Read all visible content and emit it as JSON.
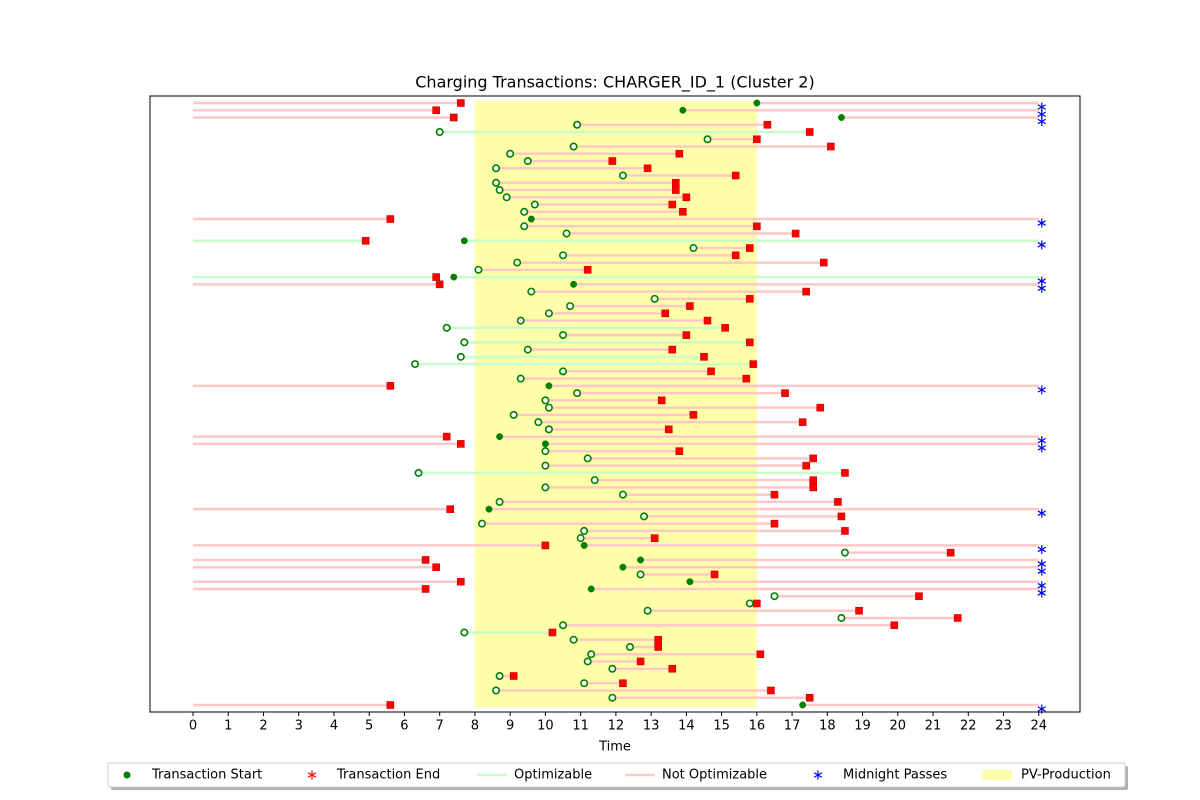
{
  "chart_data": {
    "type": "gantt",
    "title": "Charging Transactions: CHARGER_ID_1 (Cluster 2)",
    "xlabel": "Time",
    "xlim": [
      -1.22,
      25.17
    ],
    "xticks": [
      0,
      1,
      2,
      3,
      4,
      5,
      6,
      7,
      8,
      9,
      10,
      11,
      12,
      13,
      14,
      15,
      16,
      17,
      18,
      19,
      20,
      21,
      22,
      23,
      24
    ],
    "legend": [
      "Transaction Start",
      "Transaction End",
      "Optimizable",
      "Not Optimizable",
      "Midnight Passes",
      "PV-Production"
    ],
    "colors": {
      "start": "#008000",
      "end": "#ff0000",
      "optimizable": "#c8ffc8",
      "not_optimizable": "#ffc8c8",
      "midnight": "#0000ff",
      "pv": "#ffffaa"
    },
    "pv_production": {
      "start": 8,
      "end": 16
    },
    "transactions": [
      {
        "start": 16.0,
        "end": 7.6,
        "optimizable": false,
        "midnight": true
      },
      {
        "start": 13.9,
        "end": 6.9,
        "optimizable": false,
        "midnight": true
      },
      {
        "start": 18.4,
        "end": 7.4,
        "optimizable": false,
        "midnight": true
      },
      {
        "start": 10.9,
        "end": 16.3,
        "optimizable": false,
        "midnight": false
      },
      {
        "start": 7.0,
        "end": 17.5,
        "optimizable": true,
        "midnight": false
      },
      {
        "start": 14.6,
        "end": 16.0,
        "optimizable": false,
        "midnight": false
      },
      {
        "start": 10.8,
        "end": 18.1,
        "optimizable": false,
        "midnight": false
      },
      {
        "start": 9.0,
        "end": 13.8,
        "optimizable": false,
        "midnight": false
      },
      {
        "start": 9.5,
        "end": 11.9,
        "optimizable": false,
        "midnight": false
      },
      {
        "start": 8.6,
        "end": 12.9,
        "optimizable": false,
        "midnight": false
      },
      {
        "start": 12.2,
        "end": 15.4,
        "optimizable": false,
        "midnight": false
      },
      {
        "start": 8.6,
        "end": 13.7,
        "optimizable": false,
        "midnight": false
      },
      {
        "start": 8.7,
        "end": 13.7,
        "optimizable": false,
        "midnight": false
      },
      {
        "start": 8.9,
        "end": 14.0,
        "optimizable": false,
        "midnight": false
      },
      {
        "start": 9.7,
        "end": 13.6,
        "optimizable": false,
        "midnight": false
      },
      {
        "start": 9.4,
        "end": 13.9,
        "optimizable": false,
        "midnight": false
      },
      {
        "start": 9.6,
        "end": 5.6,
        "optimizable": false,
        "midnight": true
      },
      {
        "start": 9.4,
        "end": 16.0,
        "optimizable": false,
        "midnight": false
      },
      {
        "start": 10.6,
        "end": 17.1,
        "optimizable": false,
        "midnight": false
      },
      {
        "start": 7.7,
        "end": 4.9,
        "optimizable": true,
        "midnight": true
      },
      {
        "start": 14.2,
        "end": 15.8,
        "optimizable": false,
        "midnight": false
      },
      {
        "start": 10.5,
        "end": 15.4,
        "optimizable": false,
        "midnight": false
      },
      {
        "start": 9.2,
        "end": 17.9,
        "optimizable": false,
        "midnight": false
      },
      {
        "start": 8.1,
        "end": 11.2,
        "optimizable": false,
        "midnight": false
      },
      {
        "start": 7.4,
        "end": 6.9,
        "optimizable": true,
        "midnight": true
      },
      {
        "start": 10.8,
        "end": 7.0,
        "optimizable": false,
        "midnight": true
      },
      {
        "start": 9.6,
        "end": 17.4,
        "optimizable": false,
        "midnight": false
      },
      {
        "start": 13.1,
        "end": 15.8,
        "optimizable": false,
        "midnight": false
      },
      {
        "start": 10.7,
        "end": 14.1,
        "optimizable": false,
        "midnight": false
      },
      {
        "start": 10.1,
        "end": 13.4,
        "optimizable": false,
        "midnight": false
      },
      {
        "start": 9.3,
        "end": 14.6,
        "optimizable": false,
        "midnight": false
      },
      {
        "start": 7.2,
        "end": 15.1,
        "optimizable": true,
        "midnight": false
      },
      {
        "start": 10.5,
        "end": 14.0,
        "optimizable": false,
        "midnight": false
      },
      {
        "start": 7.7,
        "end": 15.8,
        "optimizable": true,
        "midnight": false
      },
      {
        "start": 9.5,
        "end": 13.6,
        "optimizable": false,
        "midnight": false
      },
      {
        "start": 7.6,
        "end": 14.5,
        "optimizable": true,
        "midnight": false
      },
      {
        "start": 6.3,
        "end": 15.9,
        "optimizable": true,
        "midnight": false
      },
      {
        "start": 10.5,
        "end": 14.7,
        "optimizable": false,
        "midnight": false
      },
      {
        "start": 9.3,
        "end": 15.7,
        "optimizable": false,
        "midnight": false
      },
      {
        "start": 10.1,
        "end": 5.6,
        "optimizable": false,
        "midnight": true
      },
      {
        "start": 10.9,
        "end": 16.8,
        "optimizable": false,
        "midnight": false
      },
      {
        "start": 10.0,
        "end": 13.3,
        "optimizable": false,
        "midnight": false
      },
      {
        "start": 10.1,
        "end": 17.8,
        "optimizable": false,
        "midnight": false
      },
      {
        "start": 9.1,
        "end": 14.2,
        "optimizable": false,
        "midnight": false
      },
      {
        "start": 9.8,
        "end": 17.3,
        "optimizable": false,
        "midnight": false
      },
      {
        "start": 10.1,
        "end": 13.5,
        "optimizable": false,
        "midnight": false
      },
      {
        "start": 8.7,
        "end": 7.2,
        "optimizable": false,
        "midnight": true
      },
      {
        "start": 10.0,
        "end": 7.6,
        "optimizable": false,
        "midnight": true
      },
      {
        "start": 10.0,
        "end": 13.8,
        "optimizable": false,
        "midnight": false
      },
      {
        "start": 11.2,
        "end": 17.6,
        "optimizable": false,
        "midnight": false
      },
      {
        "start": 10.0,
        "end": 17.4,
        "optimizable": false,
        "midnight": false
      },
      {
        "start": 6.4,
        "end": 18.5,
        "optimizable": true,
        "midnight": false
      },
      {
        "start": 11.4,
        "end": 17.6,
        "optimizable": false,
        "midnight": false
      },
      {
        "start": 10.0,
        "end": 17.6,
        "optimizable": false,
        "midnight": false
      },
      {
        "start": 12.2,
        "end": 16.5,
        "optimizable": false,
        "midnight": false
      },
      {
        "start": 8.7,
        "end": 18.3,
        "optimizable": false,
        "midnight": false
      },
      {
        "start": 8.4,
        "end": 7.3,
        "optimizable": false,
        "midnight": true
      },
      {
        "start": 12.8,
        "end": 18.4,
        "optimizable": false,
        "midnight": false
      },
      {
        "start": 8.2,
        "end": 16.5,
        "optimizable": false,
        "midnight": false
      },
      {
        "start": 11.1,
        "end": 18.5,
        "optimizable": false,
        "midnight": false
      },
      {
        "start": 11.0,
        "end": 13.1,
        "optimizable": false,
        "midnight": false
      },
      {
        "start": 11.1,
        "end": 10.0,
        "optimizable": false,
        "midnight": true
      },
      {
        "start": 18.5,
        "end": 21.5,
        "optimizable": false,
        "midnight": false
      },
      {
        "start": 12.7,
        "end": 6.6,
        "optimizable": false,
        "midnight": true
      },
      {
        "start": 12.2,
        "end": 6.9,
        "optimizable": false,
        "midnight": true
      },
      {
        "start": 12.7,
        "end": 14.8,
        "optimizable": false,
        "midnight": false
      },
      {
        "start": 14.1,
        "end": 7.6,
        "optimizable": false,
        "midnight": true
      },
      {
        "start": 11.3,
        "end": 6.6,
        "optimizable": false,
        "midnight": true
      },
      {
        "start": 16.5,
        "end": 20.6,
        "optimizable": false,
        "midnight": false
      },
      {
        "start": 15.8,
        "end": 16.0,
        "optimizable": false,
        "midnight": false
      },
      {
        "start": 12.9,
        "end": 18.9,
        "optimizable": false,
        "midnight": false
      },
      {
        "start": 18.4,
        "end": 21.7,
        "optimizable": false,
        "midnight": false
      },
      {
        "start": 10.5,
        "end": 19.9,
        "optimizable": false,
        "midnight": false
      },
      {
        "start": 7.7,
        "end": 10.2,
        "optimizable": true,
        "midnight": false
      },
      {
        "start": 10.8,
        "end": 13.2,
        "optimizable": false,
        "midnight": false
      },
      {
        "start": 12.4,
        "end": 13.2,
        "optimizable": false,
        "midnight": false
      },
      {
        "start": 11.3,
        "end": 16.1,
        "optimizable": false,
        "midnight": false
      },
      {
        "start": 11.2,
        "end": 12.7,
        "optimizable": false,
        "midnight": false
      },
      {
        "start": 11.9,
        "end": 13.6,
        "optimizable": false,
        "midnight": false
      },
      {
        "start": 8.7,
        "end": 9.1,
        "optimizable": false,
        "midnight": false
      },
      {
        "start": 11.1,
        "end": 12.2,
        "optimizable": false,
        "midnight": false
      },
      {
        "start": 8.6,
        "end": 16.4,
        "optimizable": false,
        "midnight": false
      },
      {
        "start": 11.9,
        "end": 17.5,
        "optimizable": false,
        "midnight": false
      },
      {
        "start": 17.3,
        "end": 5.6,
        "optimizable": false,
        "midnight": true
      }
    ]
  }
}
